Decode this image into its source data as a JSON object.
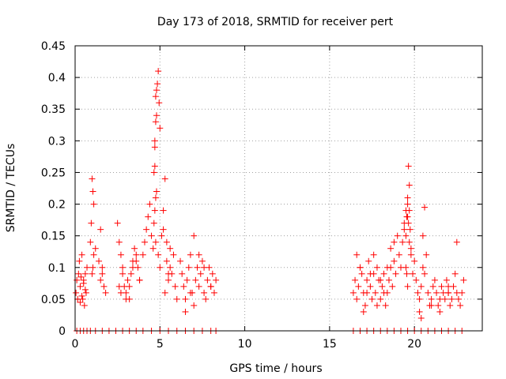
{
  "chart_data": {
    "type": "scatter",
    "title": "Day 173 of 2018, SRMTID for receiver pert",
    "xlabel": "GPS time / hours",
    "ylabel": "SRMTID / TECUs",
    "xlim": [
      0,
      24
    ],
    "ylim": [
      0,
      0.45
    ],
    "xticks": [
      0,
      5,
      10,
      15,
      20
    ],
    "xtick_labels": [
      "0",
      "5",
      "10",
      "15",
      "20"
    ],
    "yticks": [
      0,
      0.05,
      0.1,
      0.15,
      0.2,
      0.25,
      0.3,
      0.35,
      0.4,
      0.45
    ],
    "ytick_labels": [
      "0",
      "0.05",
      "0.1",
      "0.15",
      "0.2",
      "0.25",
      "0.3",
      "0.35",
      "0.4",
      "0.45"
    ],
    "grid": true,
    "marker": "+",
    "color": "#ff0000",
    "series": [
      {
        "name": "SRMTID",
        "x": [
          0.05,
          0.1,
          0.15,
          0.2,
          0.25,
          0.3,
          0.35,
          0.4,
          0.45,
          0.5,
          0.55,
          0.6,
          0.65,
          0.7,
          0.3,
          0.4,
          0.5,
          0.6,
          0.9,
          0.95,
          1.0,
          1.05,
          1.1,
          1.0,
          1.05,
          1.1,
          1.2,
          1.4,
          1.5,
          1.6,
          1.7,
          1.8,
          1.5,
          1.6,
          2.5,
          2.6,
          2.7,
          2.8,
          2.9,
          3.0,
          3.1,
          3.2,
          3.3,
          3.4,
          3.5,
          3.6,
          3.7,
          3.8,
          2.6,
          2.7,
          2.8,
          3.0,
          3.2,
          3.4,
          3.6,
          3.8,
          4.0,
          4.1,
          4.2,
          4.3,
          4.4,
          4.5,
          4.6,
          4.7,
          4.75,
          4.8,
          4.85,
          4.9,
          4.95,
          5.0,
          4.65,
          4.7,
          4.75,
          4.8,
          4.7,
          4.75,
          4.65,
          4.7,
          4.75,
          4.8,
          4.9,
          5.0,
          5.1,
          5.2,
          5.3,
          5.4,
          5.5,
          5.6,
          5.7,
          5.8,
          5.9,
          6.0,
          5.2,
          5.4,
          5.6,
          5.3,
          5.5,
          6.2,
          6.3,
          6.4,
          6.5,
          6.6,
          6.7,
          6.8,
          6.9,
          7.0,
          7.1,
          7.2,
          7.3,
          7.4,
          7.5,
          7.6,
          7.7,
          7.8,
          7.9,
          8.0,
          8.1,
          8.2,
          8.3,
          6.5,
          6.8,
          7.0,
          7.3,
          7.6,
          8.0,
          16.4,
          16.5,
          16.6,
          16.7,
          16.8,
          16.9,
          17.0,
          17.1,
          17.2,
          17.3,
          17.4,
          17.5,
          17.6,
          17.7,
          17.8,
          17.9,
          18.0,
          18.1,
          18.2,
          18.3,
          18.4,
          18.5,
          18.6,
          18.7,
          18.8,
          18.9,
          16.6,
          16.8,
          17.0,
          17.2,
          17.4,
          17.6,
          17.8,
          18.0,
          18.2,
          18.4,
          18.6,
          18.8,
          19.0,
          19.1,
          19.2,
          19.3,
          19.4,
          19.5,
          19.55,
          19.6,
          19.65,
          19.7,
          19.75,
          19.8,
          19.9,
          20.0,
          19.5,
          19.6,
          19.7,
          19.8,
          19.6,
          19.65,
          19.7,
          19.5,
          19.55,
          19.6,
          19.4,
          20.1,
          20.2,
          20.3,
          20.4,
          20.5,
          20.6,
          20.7,
          20.8,
          20.9,
          21.0,
          21.1,
          21.2,
          21.3,
          21.4,
          21.5,
          21.6,
          21.7,
          21.8,
          21.9,
          22.0,
          22.1,
          22.2,
          22.3,
          22.4,
          22.5,
          22.6,
          22.7,
          22.8,
          22.9,
          20.3,
          20.5,
          20.6,
          21.0,
          21.5,
          22.0,
          22.5,
          20.4,
          22.0,
          0.1,
          0.3,
          0.5,
          0.7,
          0.9,
          1.2,
          1.6,
          2.0,
          2.4,
          2.8,
          3.2,
          3.6,
          4.0,
          4.5,
          5.0,
          5.5,
          6.0,
          6.5,
          7.0,
          7.5,
          8.0,
          8.3,
          16.4,
          16.8,
          17.2,
          17.6,
          18.0,
          18.4,
          18.8,
          19.2,
          19.6,
          20.0,
          20.4,
          20.8,
          21.2,
          21.6,
          22.0,
          22.4,
          22.8
        ],
        "y": [
          0.06,
          0.08,
          0.05,
          0.09,
          0.11,
          0.07,
          0.085,
          0.12,
          0.05,
          0.08,
          0.04,
          0.09,
          0.06,
          0.1,
          0.045,
          0.055,
          0.075,
          0.065,
          0.14,
          0.17,
          0.24,
          0.22,
          0.2,
          0.09,
          0.1,
          0.12,
          0.13,
          0.11,
          0.16,
          0.1,
          0.07,
          0.06,
          0.08,
          0.09,
          0.17,
          0.14,
          0.12,
          0.1,
          0.07,
          0.06,
          0.08,
          0.05,
          0.09,
          0.11,
          0.13,
          0.12,
          0.1,
          0.08,
          0.07,
          0.06,
          0.09,
          0.05,
          0.07,
          0.1,
          0.11,
          0.08,
          0.12,
          0.14,
          0.16,
          0.18,
          0.2,
          0.15,
          0.13,
          0.26,
          0.33,
          0.38,
          0.39,
          0.41,
          0.36,
          0.32,
          0.25,
          0.3,
          0.37,
          0.34,
          0.29,
          0.21,
          0.17,
          0.19,
          0.14,
          0.22,
          0.12,
          0.1,
          0.15,
          0.19,
          0.24,
          0.11,
          0.08,
          0.13,
          0.09,
          0.12,
          0.07,
          0.05,
          0.16,
          0.14,
          0.1,
          0.06,
          0.09,
          0.11,
          0.09,
          0.07,
          0.05,
          0.08,
          0.1,
          0.12,
          0.06,
          0.04,
          0.08,
          0.1,
          0.07,
          0.09,
          0.11,
          0.06,
          0.05,
          0.08,
          0.1,
          0.07,
          0.09,
          0.06,
          0.08,
          0.03,
          0.06,
          0.15,
          0.12,
          0.1,
          0.07,
          0.06,
          0.08,
          0.05,
          0.07,
          0.1,
          0.09,
          0.06,
          0.04,
          0.08,
          0.11,
          0.07,
          0.05,
          0.09,
          0.06,
          0.1,
          0.08,
          0.05,
          0.07,
          0.09,
          0.04,
          0.06,
          0.08,
          0.1,
          0.07,
          0.11,
          0.09,
          0.12,
          0.1,
          0.03,
          0.06,
          0.09,
          0.12,
          0.04,
          0.08,
          0.06,
          0.1,
          0.13,
          0.14,
          0.15,
          0.12,
          0.1,
          0.14,
          0.17,
          0.19,
          0.18,
          0.21,
          0.26,
          0.23,
          0.16,
          0.13,
          0.09,
          0.11,
          0.15,
          0.18,
          0.19,
          0.12,
          0.2,
          0.17,
          0.14,
          0.1,
          0.09,
          0.07,
          0.16,
          0.08,
          0.06,
          0.05,
          0.07,
          0.1,
          0.09,
          0.12,
          0.06,
          0.04,
          0.05,
          0.07,
          0.08,
          0.06,
          0.04,
          0.05,
          0.07,
          0.06,
          0.05,
          0.08,
          0.06,
          0.04,
          0.05,
          0.07,
          0.09,
          0.06,
          0.05,
          0.04,
          0.06,
          0.08,
          0.03,
          0.15,
          0.195,
          0.04,
          0.03,
          0.06,
          0.14,
          0.02,
          0.07,
          0,
          0,
          0,
          0,
          0,
          0,
          0,
          0,
          0,
          0,
          0,
          0,
          0,
          0,
          0,
          0,
          0,
          0,
          0,
          0,
          0,
          0,
          0,
          0,
          0,
          0,
          0,
          0,
          0,
          0,
          0,
          0,
          0,
          0,
          0,
          0,
          0,
          0,
          0
        ]
      }
    ]
  }
}
